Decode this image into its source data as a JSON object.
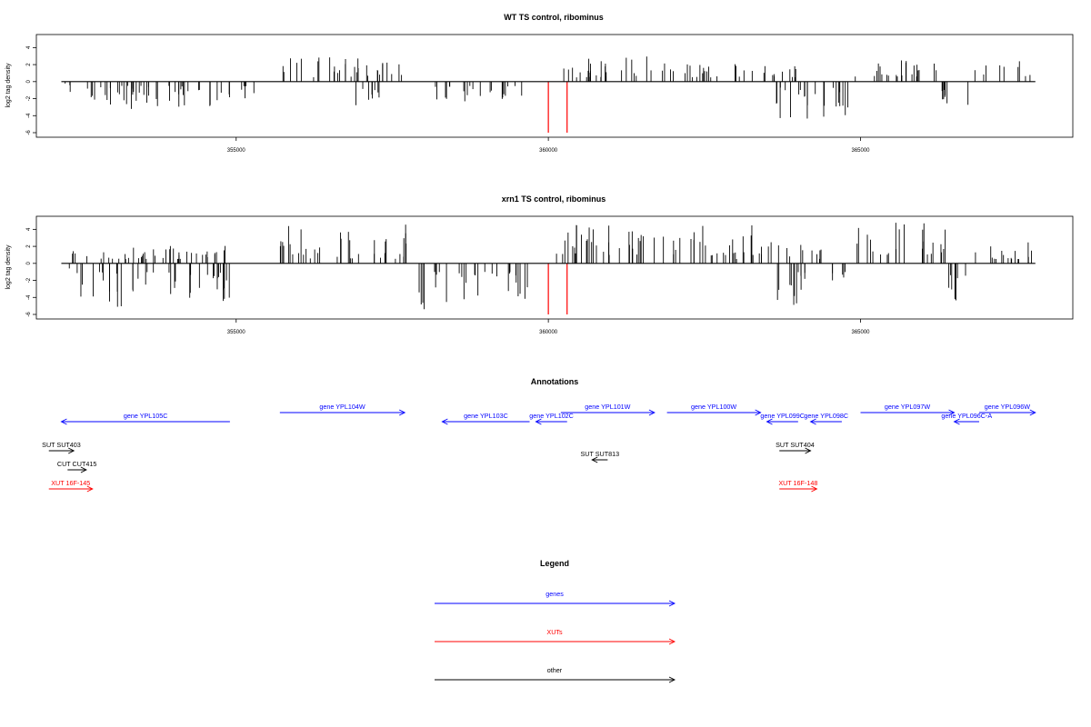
{
  "panels": [
    {
      "title": "WT TS control, ribominus",
      "ylabel": "log2 tag density"
    },
    {
      "title": "xrn1 TS control, ribominus",
      "ylabel": "log2 tag density"
    }
  ],
  "annotations_title": "Annotations",
  "legend": {
    "title": "Legend",
    "items": [
      {
        "label": "genes",
        "color": "#0000ff"
      },
      {
        "label": "XUTs",
        "color": "#ff0000"
      },
      {
        "label": "other",
        "color": "#000000"
      }
    ]
  },
  "annotations": [
    {
      "label": "gene YPL105C",
      "start": 352200,
      "end": 354900,
      "strand": "-",
      "row": 2,
      "color": "#0000ff"
    },
    {
      "label": "gene YPL104W",
      "start": 355700,
      "end": 357700,
      "strand": "+",
      "row": 1,
      "color": "#0000ff"
    },
    {
      "label": "gene YPL103C",
      "start": 358300,
      "end": 359700,
      "strand": "-",
      "row": 2,
      "color": "#0000ff"
    },
    {
      "label": "gene YPL102C",
      "start": 359800,
      "end": 360300,
      "strand": "-",
      "row": 2,
      "color": "#0000ff"
    },
    {
      "label": "gene YPL101W",
      "start": 360200,
      "end": 361700,
      "strand": "+",
      "row": 1,
      "color": "#0000ff"
    },
    {
      "label": "gene YPL100W",
      "start": 361900,
      "end": 363400,
      "strand": "+",
      "row": 1,
      "color": "#0000ff"
    },
    {
      "label": "gene YPL099C",
      "start": 363500,
      "end": 364000,
      "strand": "-",
      "row": 2,
      "color": "#0000ff"
    },
    {
      "label": "gene YPL098C",
      "start": 364200,
      "end": 364700,
      "strand": "-",
      "row": 2,
      "color": "#0000ff"
    },
    {
      "label": "gene YPL097W",
      "start": 365000,
      "end": 366500,
      "strand": "+",
      "row": 1,
      "color": "#0000ff"
    },
    {
      "label": "gene YPL096C-A",
      "start": 366500,
      "end": 366900,
      "strand": "-",
      "row": 2,
      "color": "#0000ff"
    },
    {
      "label": "gene YPL096W",
      "start": 366900,
      "end": 367800,
      "strand": "+",
      "row": 1,
      "color": "#0000ff"
    },
    {
      "label": "SUT SUT403",
      "start": 352000,
      "end": 352400,
      "strand": "+",
      "row": 3,
      "color": "#000000"
    },
    {
      "label": "CUT CUT415",
      "start": 352300,
      "end": 352600,
      "strand": "+",
      "row": 4,
      "color": "#000000"
    },
    {
      "label": "XUT 16F-145",
      "start": 352000,
      "end": 352700,
      "strand": "+",
      "row": 5,
      "color": "#ff0000"
    },
    {
      "label": "SUT SUT813",
      "start": 360700,
      "end": 360950,
      "strand": "-",
      "row": 3.5,
      "color": "#000000"
    },
    {
      "label": "SUT SUT404",
      "start": 363700,
      "end": 364200,
      "strand": "+",
      "row": 3,
      "color": "#000000"
    },
    {
      "label": "XUT 16F-148",
      "start": 363700,
      "end": 364300,
      "strand": "+",
      "row": 5,
      "color": "#ff0000"
    }
  ],
  "chart_data": [
    {
      "type": "bar",
      "title": "WT TS control, ribominus",
      "xlabel": "",
      "ylabel": "log2 tag density",
      "xlim": [
        351800,
        368400
      ],
      "ylim": [
        -6,
        5
      ],
      "yticks": [
        4,
        2,
        0,
        -2,
        -4,
        -6
      ],
      "xticks": [
        355000,
        360000,
        365000
      ],
      "xticklabels": [
        "355000",
        "360000",
        "365000"
      ],
      "data_range": [
        352200,
        367800
      ],
      "highlight": {
        "x": [
          360000,
          360300
        ],
        "y": -6,
        "color": "#ff0000"
      },
      "regions": [
        {
          "from": 352200,
          "to": 352400,
          "min": -2.2,
          "max": 1.6
        },
        {
          "from": 352400,
          "to": 354900,
          "min": -3.6,
          "max": -0.5
        },
        {
          "from": 355000,
          "to": 355400,
          "min": -2.0,
          "max": -0.5
        },
        {
          "from": 355700,
          "to": 357700,
          "min": 0.5,
          "max": 3.1
        },
        {
          "from": 356900,
          "to": 357300,
          "min": -2.8,
          "max": -0.8
        },
        {
          "from": 358000,
          "to": 359600,
          "min": -2.8,
          "max": -0.5
        },
        {
          "from": 360200,
          "to": 361700,
          "min": 0.5,
          "max": 3.1
        },
        {
          "from": 361800,
          "to": 363300,
          "min": 0.5,
          "max": 2.3
        },
        {
          "from": 363500,
          "to": 364800,
          "min": -4.4,
          "max": -0.5
        },
        {
          "from": 363400,
          "to": 364000,
          "min": 0.5,
          "max": 2.0
        },
        {
          "from": 364900,
          "to": 366300,
          "min": 0.6,
          "max": 2.6
        },
        {
          "from": 366300,
          "to": 366800,
          "min": -4.2,
          "max": -0.5
        },
        {
          "from": 366800,
          "to": 367800,
          "min": 0.5,
          "max": 2.8
        }
      ]
    },
    {
      "type": "bar",
      "title": "xrn1 TS control, ribominus",
      "xlabel": "",
      "ylabel": "log2 tag density",
      "xlim": [
        351800,
        368400
      ],
      "ylim": [
        -6,
        5
      ],
      "yticks": [
        4,
        2,
        0,
        -2,
        -4,
        -6
      ],
      "xticks": [
        355000,
        360000,
        365000
      ],
      "xticklabels": [
        "355000",
        "360000",
        "365000"
      ],
      "data_range": [
        352200,
        367800
      ],
      "highlight": {
        "x": [
          360000,
          360300
        ],
        "y": -6,
        "color": "#ff0000"
      },
      "regions": [
        {
          "from": 352200,
          "to": 352400,
          "min": -1.5,
          "max": 2.3
        },
        {
          "from": 352400,
          "to": 354900,
          "min": -5.5,
          "max": -1.0
        },
        {
          "from": 352400,
          "to": 354900,
          "min": 0.5,
          "max": 2.2
        },
        {
          "from": 355700,
          "to": 357800,
          "min": 0.5,
          "max": 4.9
        },
        {
          "from": 357900,
          "to": 359800,
          "min": -5.8,
          "max": -1.0
        },
        {
          "from": 360100,
          "to": 361900,
          "min": 1.0,
          "max": 4.5
        },
        {
          "from": 361900,
          "to": 363400,
          "min": 0.5,
          "max": 4.5
        },
        {
          "from": 363500,
          "to": 364900,
          "min": -5.0,
          "max": -1.0
        },
        {
          "from": 363400,
          "to": 364400,
          "min": 0.5,
          "max": 2.5
        },
        {
          "from": 364900,
          "to": 366400,
          "min": 1.0,
          "max": 5.0
        },
        {
          "from": 366400,
          "to": 366800,
          "min": -4.5,
          "max": -1.0
        },
        {
          "from": 366800,
          "to": 367800,
          "min": 0.5,
          "max": 3.0
        }
      ]
    }
  ]
}
